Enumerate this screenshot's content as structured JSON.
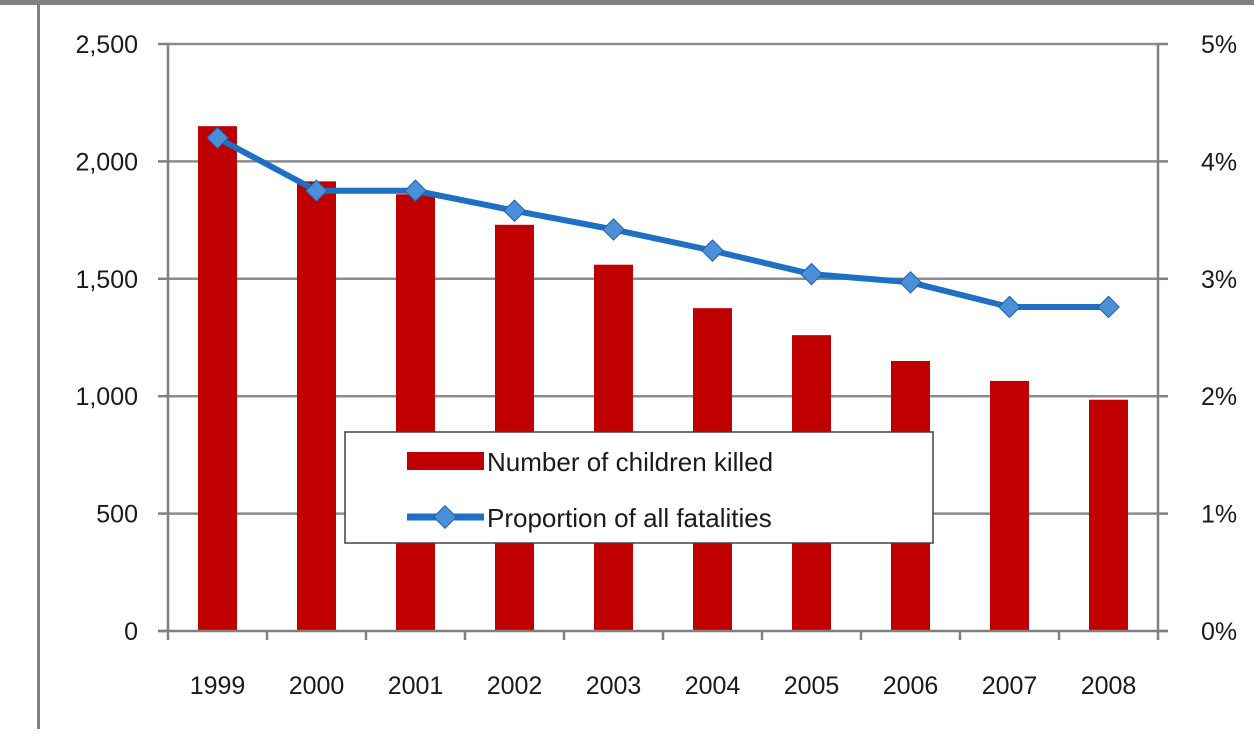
{
  "chart_data": {
    "type": "bar",
    "title": "",
    "xlabel": "",
    "ylabel": "",
    "categories": [
      "1999",
      "2000",
      "2001",
      "2002",
      "2003",
      "2004",
      "2005",
      "2006",
      "2007",
      "2008"
    ],
    "series": [
      {
        "name": "Number of children killed",
        "type": "bar",
        "axis": "left",
        "color": "#c00000",
        "values": [
          2150,
          1915,
          1860,
          1730,
          1560,
          1375,
          1260,
          1150,
          1065,
          985
        ]
      },
      {
        "name": "Proportion of all fatalities",
        "type": "line",
        "axis": "right",
        "color": "#1f6fc4",
        "values": [
          4.2,
          3.75,
          3.75,
          3.58,
          3.42,
          3.24,
          3.04,
          2.97,
          2.76,
          2.76
        ]
      }
    ],
    "ylim": [
      0,
      2500
    ],
    "yticks": [
      "0",
      "500",
      "1,000",
      "1,500",
      "2,000",
      "2,500"
    ],
    "y2lim": [
      0,
      5
    ],
    "y2ticks": [
      "0%",
      "1%",
      "2%",
      "3%",
      "4%",
      "5%"
    ],
    "grid": true,
    "legend_position": "center"
  }
}
